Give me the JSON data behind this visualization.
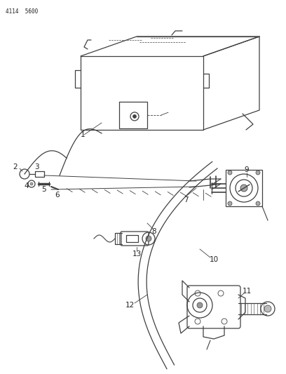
{
  "header_code": "4114  5600",
  "background_color": "#ffffff",
  "line_color": "#404040",
  "text_color": "#222222",
  "fig_width": 4.08,
  "fig_height": 5.33,
  "dpi": 100
}
